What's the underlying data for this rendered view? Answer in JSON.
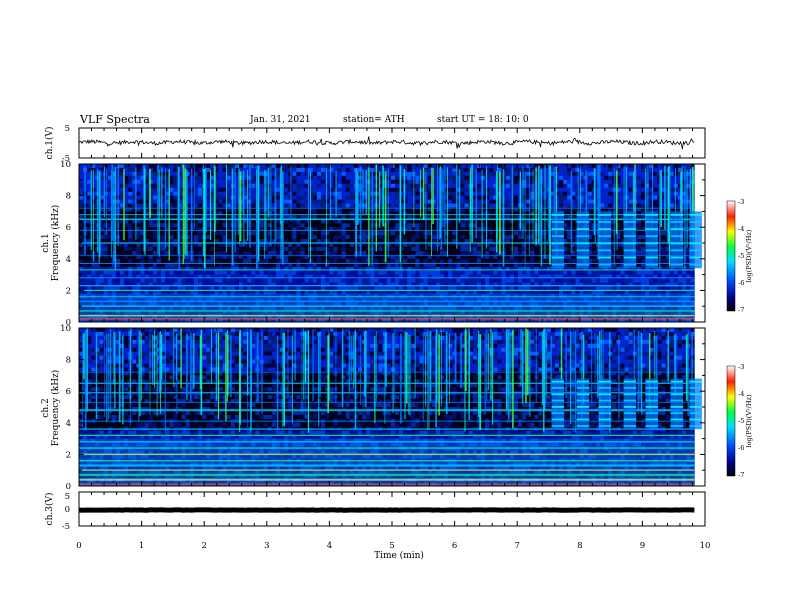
{
  "header": {
    "title": "VLF Spectra",
    "date": "Jan. 31, 2021",
    "station": "station= ATH",
    "start": "start  UT =   18: 10: 0"
  },
  "chart_data": [
    {
      "type": "line",
      "name": "channel-1-waveform",
      "ylabel": "ch.1(V)",
      "ylim": [
        -5,
        5
      ],
      "yticks": [
        "5",
        "-5"
      ],
      "xlim": [
        0,
        10
      ],
      "baseline": 0.2
    },
    {
      "type": "heatmap",
      "name": "channel-1-spectrogram",
      "ylabel_line1": "ch.1",
      "ylabel_line2": "Frequency (kHz)",
      "ylim": [
        0,
        10
      ],
      "yticks": [
        "0",
        "2",
        "4",
        "6",
        "8",
        "10"
      ],
      "xlim": [
        0,
        10
      ],
      "colorbar": {
        "label": "log(PSD)(V²/Hz)",
        "range": [
          -7,
          -3
        ],
        "ticks": [
          "-3",
          "-4",
          "-5",
          "-6",
          "-7"
        ]
      }
    },
    {
      "type": "heatmap",
      "name": "channel-2-spectrogram",
      "ylabel_line1": "ch.2",
      "ylabel_line2": "Frequency (kHz)",
      "ylim": [
        0,
        10
      ],
      "yticks": [
        "0",
        "2",
        "4",
        "6",
        "8",
        "10"
      ],
      "xlim": [
        0,
        10
      ],
      "colorbar": {
        "label": "log(PSD)(V²/Hz)",
        "range": [
          -7,
          -3
        ],
        "ticks": [
          "-3",
          "-4",
          "-5",
          "-6",
          "-7"
        ]
      }
    },
    {
      "type": "line",
      "name": "channel-3-waveform",
      "ylabel": "ch.3(V)",
      "ylim": [
        -5,
        5
      ],
      "yticks": [
        "5",
        "0",
        "-5"
      ],
      "xlim": [
        0,
        10
      ],
      "baseline": -0.3
    }
  ],
  "xaxis": {
    "label": "Time (min)",
    "ticks": [
      "0",
      "1",
      "2",
      "3",
      "4",
      "5",
      "6",
      "7",
      "8",
      "9",
      "10"
    ],
    "data_end": 9.83
  },
  "colors": {
    "axis": "#000000",
    "background": "#ffffff"
  }
}
